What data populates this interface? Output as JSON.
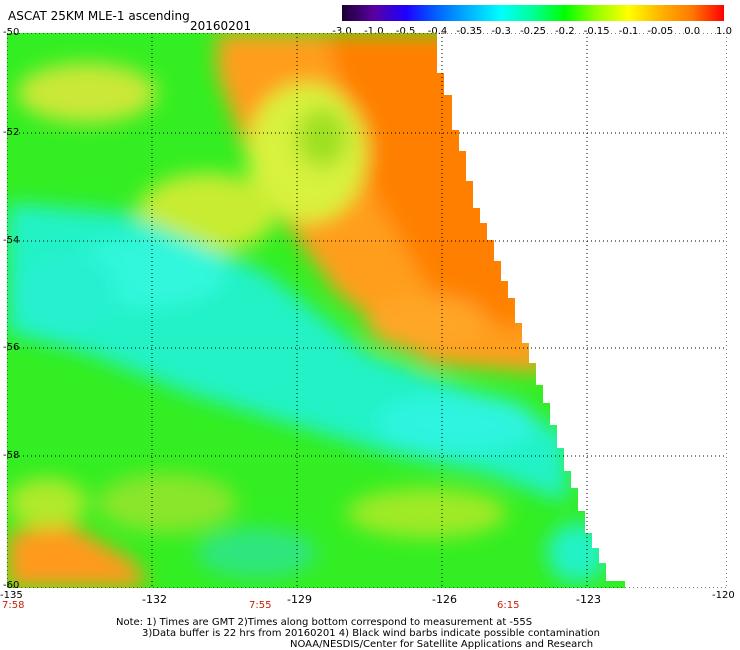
{
  "title": "ASCAT 25KM MLE-1 ascending",
  "date": "20160201",
  "colorbar": {
    "labels": [
      "-3.0",
      "-1.0",
      "-0.5",
      "-0.4",
      "-0.35",
      "-0.3",
      "-0.25",
      "-0.2",
      "-0.15",
      "-0.1",
      "-0.05",
      "0.0",
      "1.0"
    ],
    "colors": [
      "#1a0033",
      "#5a00a0",
      "#1e00ff",
      "#0064ff",
      "#00b4ff",
      "#00ffff",
      "#00ff96",
      "#00ff00",
      "#96ff00",
      "#ffff00",
      "#ffb400",
      "#ff7800",
      "#ff0000"
    ]
  },
  "map": {
    "lon_labels": [
      "-135",
      "-132",
      "-129",
      "-126",
      "-123",
      "-120"
    ],
    "lat_labels": [
      "-50",
      "-52",
      "-54",
      "-56",
      "-58",
      "-60"
    ],
    "time_labels": [
      "7:58",
      "7:55",
      "6:15"
    ]
  },
  "notes": {
    "line1": "Note: 1) Times are GMT 2)Times along bottom correspond to measurement at -55S",
    "line2": "3)Data buffer is 22 hrs from 20160201 4) Black wind barbs indicate possible contamination",
    "line3": "NOAA/NESDIS/Center for Satellite Applications and Research"
  }
}
